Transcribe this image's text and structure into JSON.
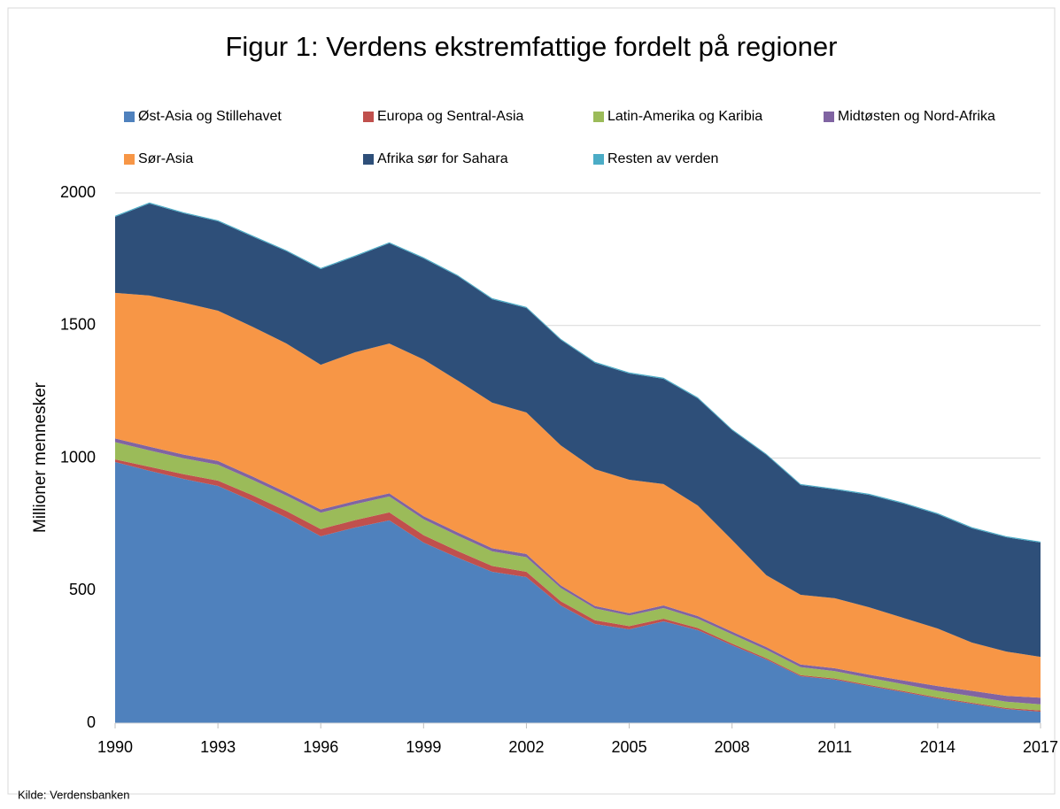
{
  "chart_data": {
    "type": "stacked_area",
    "title": "Figur 1: Verdens ekstremfattige fordelt på regioner",
    "y_label": "Millioner mennesker",
    "source": "Kilde: Verdensbanken",
    "x": [
      1990,
      1991,
      1992,
      1993,
      1994,
      1995,
      1996,
      1997,
      1998,
      1999,
      2000,
      2001,
      2002,
      2003,
      2004,
      2005,
      2006,
      2007,
      2008,
      2009,
      2010,
      2011,
      2012,
      2013,
      2014,
      2015,
      2016,
      2017
    ],
    "xlim": [
      1990,
      2017
    ],
    "xticks": [
      1990,
      1993,
      1996,
      1999,
      2002,
      2005,
      2008,
      2011,
      2014,
      2017
    ],
    "ylim": [
      0,
      2000
    ],
    "yticks": [
      0,
      500,
      1000,
      1500,
      2000
    ],
    "grid": true,
    "legend": "top",
    "series": [
      {
        "name": "Øst-Asia og Stillehavet",
        "color": "#4f81bd",
        "values": [
          985,
          952,
          921,
          895,
          838,
          775,
          705,
          738,
          765,
          681,
          624,
          571,
          551,
          444,
          374,
          354,
          384,
          351,
          294,
          240,
          177,
          164,
          140,
          117,
          93,
          73,
          53,
          43
        ]
      },
      {
        "name": "Europa og Sentral-Asia",
        "color": "#c0504d",
        "values": [
          10,
          15,
          18,
          20,
          22,
          25,
          27,
          28,
          30,
          28,
          25,
          22,
          20,
          16,
          14,
          12,
          10,
          8,
          6,
          5,
          4,
          4,
          4,
          4,
          4,
          4,
          4,
          5
        ]
      },
      {
        "name": "Latin-Amerika og Karibia",
        "color": "#9bbb59",
        "values": [
          65,
          62,
          60,
          60,
          58,
          58,
          62,
          60,
          60,
          60,
          58,
          55,
          55,
          50,
          45,
          40,
          40,
          35,
          35,
          32,
          30,
          28,
          27,
          26,
          25,
          25,
          24,
          23
        ]
      },
      {
        "name": "Midtøsten og Nord-Afrika",
        "color": "#8064a2",
        "values": [
          14,
          14,
          14,
          14,
          13,
          12,
          12,
          12,
          12,
          12,
          12,
          12,
          12,
          10,
          9,
          9,
          10,
          10,
          10,
          10,
          10,
          11,
          12,
          14,
          18,
          20,
          22,
          25
        ]
      },
      {
        "name": "Sør-Asia",
        "color": "#f79646",
        "values": [
          549,
          570,
          573,
          567,
          565,
          562,
          546,
          561,
          565,
          591,
          573,
          549,
          534,
          528,
          516,
          503,
          458,
          417,
          346,
          271,
          263,
          264,
          254,
          236,
          217,
          182,
          167,
          154
        ]
      },
      {
        "name": "Afrika sør for Sahara",
        "color": "#2e4f79",
        "values": [
          287,
          347,
          337,
          337,
          340,
          348,
          361,
          361,
          378,
          381,
          394,
          390,
          394,
          398,
          401,
          401,
          397,
          404,
          414,
          454,
          414,
          410,
          424,
          431,
          431,
          431,
          431,
          431
        ]
      },
      {
        "name": "Resten av verden",
        "color": "#4bacc6",
        "values": [
          4,
          4,
          4,
          4,
          4,
          4,
          4,
          4,
          4,
          4,
          4,
          4,
          4,
          4,
          4,
          4,
          4,
          4,
          4,
          4,
          4,
          4,
          4,
          4,
          4,
          4,
          4,
          4
        ]
      }
    ]
  }
}
